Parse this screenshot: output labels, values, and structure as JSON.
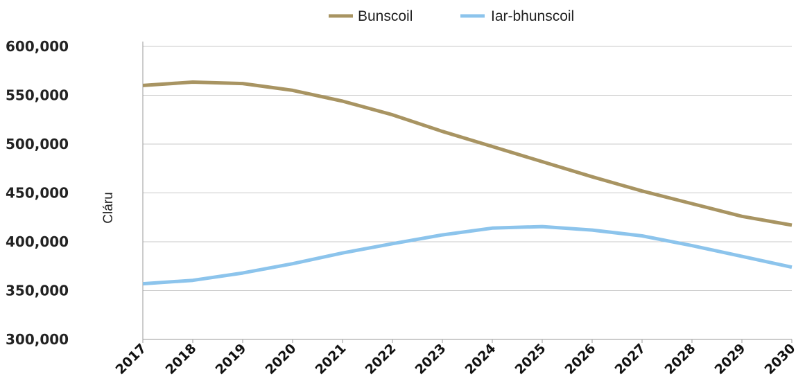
{
  "chart_data": {
    "type": "line",
    "title": "",
    "xlabel": "",
    "ylabel": "Cláru",
    "ylim": [
      300000,
      600000
    ],
    "yticks": [
      "600,000",
      "550,000",
      "500,000",
      "450,000",
      "400,000",
      "350,000",
      "300,000"
    ],
    "ytick_values": [
      600000,
      550000,
      500000,
      450000,
      400000,
      350000,
      300000
    ],
    "categories": [
      "2017",
      "2018",
      "2019",
      "2020",
      "2021",
      "2022",
      "2023",
      "2024",
      "2025",
      "2026",
      "2027",
      "2028",
      "2029",
      "2030"
    ],
    "grid": "horizontal",
    "legend_position": "top",
    "series": [
      {
        "name": "Bunscoil",
        "color": "#A89462",
        "values": [
          560000,
          563500,
          562000,
          555000,
          544000,
          530000,
          513000,
          497500,
          482000,
          466500,
          452000,
          439000,
          426000,
          417000
        ]
      },
      {
        "name": "Iar-bhunscoil",
        "color": "#8CC4EC",
        "values": [
          357000,
          360500,
          368000,
          377500,
          388500,
          398000,
          407000,
          414000,
          415500,
          412000,
          406000,
          396000,
          385000,
          374000
        ]
      }
    ]
  }
}
